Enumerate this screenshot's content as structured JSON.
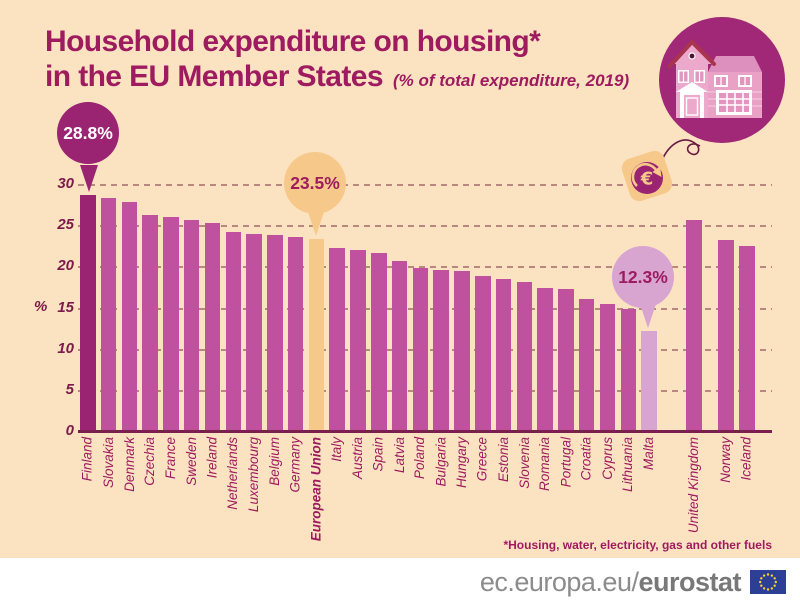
{
  "title": {
    "line1": "Household expenditure on housing*",
    "line2": "in the EU Member States",
    "subtitle": "(% of total expenditure, 2019)"
  },
  "footnote": "*Housing, water, electricity, gas and other fuels",
  "footer": {
    "url_prefix": "ec.europa.eu/",
    "url_bold": "eurostat"
  },
  "axis": {
    "percent_label": "%"
  },
  "callouts": [
    {
      "country": "Finland",
      "label": "28.8%",
      "value": 28.8,
      "bg": "#9A2472",
      "fg": "#FFFFFF"
    },
    {
      "country": "European Union",
      "label": "23.5%",
      "value": 23.5,
      "bg": "#F6C98A",
      "fg": "#9E1B5F"
    },
    {
      "country": "Malta",
      "label": "12.3%",
      "value": 12.3,
      "bg": "#D7A5D0",
      "fg": "#9E1B5F"
    }
  ],
  "colors": {
    "background": "#FBE2C1",
    "bar_default": "#BF519E",
    "bar_dark_finland": "#9A2472",
    "bar_accent_eu": "#F6C98A",
    "bar_light_malta": "#D7A5D0",
    "title_text": "#9E1B5F",
    "axis_text": "#7D1A4B",
    "baseline": "#7A1F4E",
    "footer_text": "#8C8C8C",
    "flag_blue": "#2C3F94",
    "flag_stars": "#F8D12E",
    "illustration_circle": "#A12877",
    "tag_orange": "#F6C98A"
  },
  "icons": [
    "house-icon",
    "price-tag-euro-icon",
    "eu-flag-icon"
  ],
  "chart_data": {
    "type": "bar",
    "title": "Household expenditure on housing* in the EU Member States",
    "subtitle": "(% of total expenditure, 2019)",
    "ylabel": "%",
    "ylim": [
      0,
      30
    ],
    "yticks": [
      0,
      5,
      10,
      15,
      20,
      25,
      30
    ],
    "grid": "horizontal dashed",
    "legend": "none",
    "categories": [
      "Finland",
      "Slovakia",
      "Denmark",
      "Czechia",
      "France",
      "Sweden",
      "Ireland",
      "Netherlands",
      "Luxembourg",
      "Belgium",
      "Germany",
      "European Union",
      "Italy",
      "Austria",
      "Spain",
      "Latvia",
      "Poland",
      "Bulgaria",
      "Hungary",
      "Greece",
      "Estonia",
      "Slovenia",
      "Romania",
      "Portugal",
      "Croatia",
      "Cyprus",
      "Lithuania",
      "Malta",
      "United Kingdom",
      "Norway",
      "Iceland"
    ],
    "values": [
      28.8,
      28.4,
      27.9,
      26.3,
      26.1,
      25.8,
      25.4,
      24.3,
      24.1,
      23.9,
      23.7,
      23.5,
      22.4,
      22.1,
      21.8,
      20.8,
      19.9,
      19.7,
      19.5,
      18.9,
      18.6,
      18.2,
      17.5,
      17.4,
      16.1,
      15.5,
      14.9,
      12.3,
      25.8,
      23.3,
      22.6
    ],
    "highlighted_bars": {
      "dark": "Finland",
      "accent": "European Union",
      "light": "Malta"
    },
    "separate_group": [
      "United Kingdom",
      "Norway",
      "Iceland"
    ],
    "annotated_values": {
      "Finland": "28.8%",
      "European Union": "23.5%",
      "Malta": "12.3%"
    }
  }
}
